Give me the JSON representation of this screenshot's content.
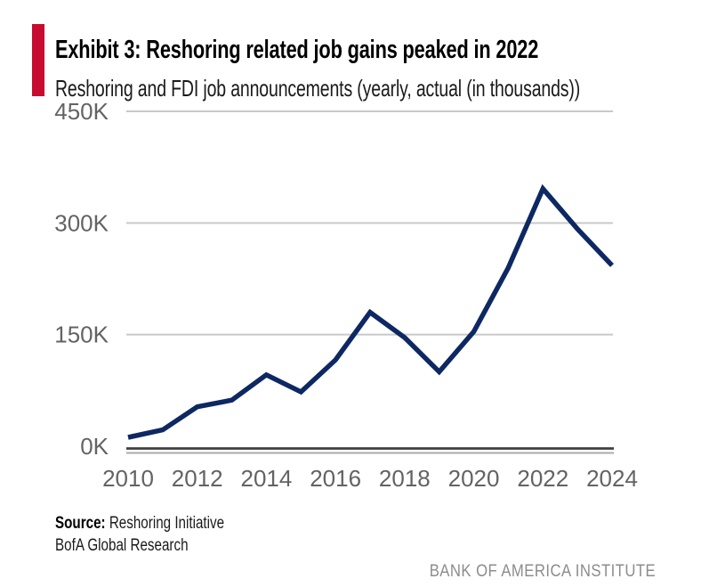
{
  "header": {
    "exhibit_title": "Exhibit 3: Reshoring related job gains peaked in 2022",
    "subtitle": "Reshoring and FDI job announcements (yearly, actual (in thousands))",
    "accent_color": "#c60c30"
  },
  "chart_data": {
    "type": "line",
    "title": "Reshoring and FDI job announcements (yearly, actual (in thousands))",
    "x": [
      2010,
      2011,
      2012,
      2013,
      2014,
      2015,
      2016,
      2017,
      2018,
      2019,
      2020,
      2021,
      2022,
      2023,
      2024
    ],
    "series": [
      {
        "name": "Reshoring and FDI job announcements (thousands)",
        "values": [
          12,
          22,
          53,
          62,
          96,
          73,
          116,
          180,
          146,
          100,
          154,
          240,
          346,
          292,
          243
        ]
      }
    ],
    "unit": "thousands",
    "xlabel": "",
    "ylabel": "",
    "ylim": [
      0,
      450
    ],
    "y_ticks": [
      {
        "value": 0,
        "label": "0K"
      },
      {
        "value": 150,
        "label": "150K"
      },
      {
        "value": 300,
        "label": "300K"
      },
      {
        "value": 450,
        "label": "450K"
      }
    ],
    "x_tick_labels": [
      "2010",
      "2012",
      "2014",
      "2016",
      "2018",
      "2020",
      "2022",
      "2024"
    ],
    "grid": "horizontal",
    "legend": "none",
    "line_color": "#0d2862",
    "gridline_color": "#c9c9c9",
    "axis_color": "#3f3f3f",
    "axis_shadow_color": "#ababab",
    "tick_label_color": "#636363"
  },
  "footer": {
    "source_label": "Source:",
    "source_text": " Reshoring Initiative",
    "secondary_text": "BofA Global Research",
    "brand_text": "BANK OF AMERICA INSTITUTE"
  }
}
